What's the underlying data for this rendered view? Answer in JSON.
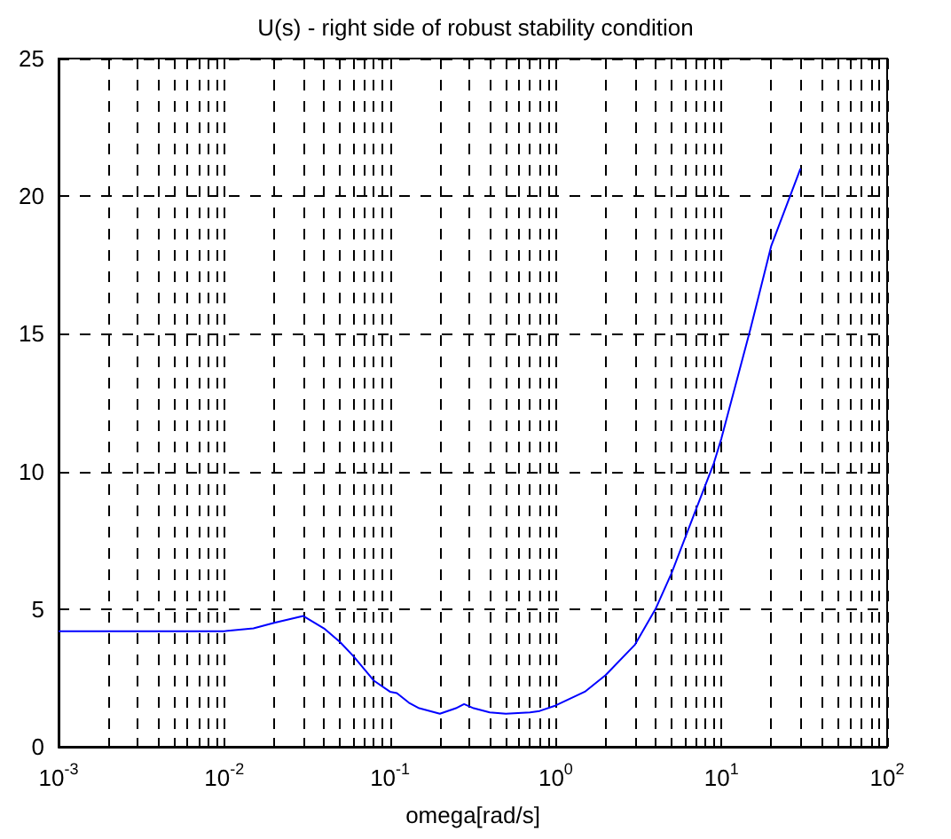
{
  "chart_data": {
    "type": "line",
    "title": "U(s) - right side of robust stability condition",
    "xlabel": "omega[rad/s]",
    "log": "x",
    "grid": true,
    "line_style": "solid",
    "marker": "none",
    "xlim": [
      0.001,
      100
    ],
    "ylim": [
      0,
      25
    ],
    "xticks": [
      {
        "value": 0.001,
        "label": "10$^{-3}$"
      },
      {
        "value": 0.002,
        "label": null
      },
      {
        "value": 0.003,
        "label": null
      },
      {
        "value": 0.004,
        "label": null
      },
      {
        "value": 0.005,
        "label": null
      },
      {
        "value": 0.006,
        "label": null
      },
      {
        "value": 0.007,
        "label": null
      },
      {
        "value": 0.008,
        "label": null
      },
      {
        "value": 0.009,
        "label": null
      },
      {
        "value": 0.01,
        "label": "10$^{-2}$"
      },
      {
        "value": 0.02,
        "label": null
      },
      {
        "value": 0.03,
        "label": null
      },
      {
        "value": 0.04,
        "label": null
      },
      {
        "value": 0.05,
        "label": null
      },
      {
        "value": 0.06,
        "label": null
      },
      {
        "value": 0.07,
        "label": null
      },
      {
        "value": 0.08,
        "label": null
      },
      {
        "value": 0.09,
        "label": null
      },
      {
        "value": 0.1,
        "label": "10$^{-1}$"
      },
      {
        "value": 0.2,
        "label": null
      },
      {
        "value": 0.3,
        "label": null
      },
      {
        "value": 0.4,
        "label": null
      },
      {
        "value": 0.5,
        "label": null
      },
      {
        "value": 0.6,
        "label": null
      },
      {
        "value": 0.7,
        "label": null
      },
      {
        "value": 0.8,
        "label": null
      },
      {
        "value": 0.9,
        "label": null
      },
      {
        "value": 1,
        "label": "10$^{0}$"
      },
      {
        "value": 2,
        "label": null
      },
      {
        "value": 3,
        "label": null
      },
      {
        "value": 4,
        "label": null
      },
      {
        "value": 5,
        "label": null
      },
      {
        "value": 6,
        "label": null
      },
      {
        "value": 7,
        "label": null
      },
      {
        "value": 8,
        "label": null
      },
      {
        "value": 9,
        "label": null
      },
      {
        "value": 10,
        "label": "10$^{1}$"
      },
      {
        "value": 20,
        "label": null
      },
      {
        "value": 30,
        "label": null
      },
      {
        "value": 40,
        "label": null
      },
      {
        "value": 50,
        "label": null
      },
      {
        "value": 60,
        "label": null
      },
      {
        "value": 70,
        "label": null
      },
      {
        "value": 80,
        "label": null
      },
      {
        "value": 90,
        "label": null
      },
      {
        "value": 100,
        "label": "10$^{2}$"
      }
    ],
    "yticks": [
      0,
      5,
      10,
      15,
      20,
      25
    ],
    "series": [
      {
        "color": "#0000ff",
        "x": [
          0.001,
          0.005,
          0.01,
          0.015,
          0.02,
          0.03,
          0.04,
          0.05,
          0.06,
          0.08,
          0.1,
          0.11,
          0.13,
          0.15,
          0.2,
          0.25,
          0.28,
          0.32,
          0.4,
          0.5,
          0.7,
          0.8,
          1,
          1.5,
          2,
          3,
          4,
          5,
          7,
          9,
          10,
          15,
          20,
          30
        ],
        "values": [
          4.2,
          4.2,
          4.2,
          4.3,
          4.5,
          4.75,
          4.3,
          3.8,
          3.3,
          2.4,
          2.0,
          1.95,
          1.6,
          1.4,
          1.2,
          1.4,
          1.55,
          1.4,
          1.25,
          1.2,
          1.25,
          1.3,
          1.5,
          2.0,
          2.6,
          3.7,
          5.0,
          6.3,
          8.6,
          10.3,
          11.2,
          15.2,
          18.2,
          21
        ]
      }
    ]
  }
}
